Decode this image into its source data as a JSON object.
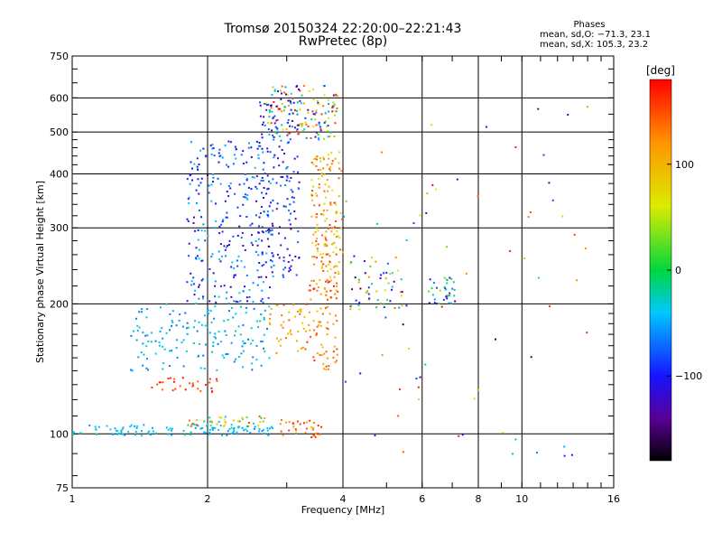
{
  "chart_data": {
    "type": "scatter",
    "title": "Tromsø 20150324 22:20:00–22:21:43",
    "subtitle": "RwPretec (8p)",
    "xlabel": "Frequency [MHz]",
    "ylabel": "Stationary phase Virtual Height [km]",
    "x_scale": "log",
    "y_scale": "log",
    "xlim": [
      1,
      16
    ],
    "ylim": [
      75,
      750
    ],
    "x_ticks": [
      "1",
      "2",
      "4",
      "6",
      "8",
      "10",
      "16"
    ],
    "y_ticks": [
      "75",
      "100",
      "200",
      "300",
      "400",
      "500",
      "600",
      "750"
    ],
    "grid": true,
    "phase_stats": {
      "heading": "Phases",
      "line_o": "mean, sd,O: −71.3, 23.1",
      "line_x": "mean, sd,X: 105.3, 23.2"
    },
    "colorbar": {
      "label": "[deg]",
      "range": [
        -180,
        180
      ],
      "ticks": [
        "100",
        "0",
        "−100"
      ],
      "tick_values": [
        100,
        0,
        -100
      ],
      "colormap": "rainbow (black → purple → blue → cyan → green → yellow → orange → red)"
    },
    "clusters": [
      {
        "f": [
          1.0,
          2.8
        ],
        "h": [
          99,
          105
        ],
        "phase": [
          -60,
          -25
        ],
        "n": 110
      },
      {
        "f": [
          1.8,
          2.7
        ],
        "h": [
          104,
          110
        ],
        "phase": [
          -55,
          160
        ],
        "n": 40
      },
      {
        "f": [
          2.9,
          3.6
        ],
        "h": [
          98,
          108
        ],
        "phase": [
          100,
          180
        ],
        "n": 35
      },
      {
        "f": [
          1.5,
          2.1
        ],
        "h": [
          125,
          135
        ],
        "phase": [
          130,
          175
        ],
        "n": 30
      },
      {
        "f": [
          1.35,
          2.8
        ],
        "h": [
          140,
          200
        ],
        "phase": [
          -70,
          -20
        ],
        "n": 160
      },
      {
        "f": [
          1.8,
          2.8
        ],
        "h": [
          200,
          480
        ],
        "phase": [
          -130,
          -30
        ],
        "n": 280
      },
      {
        "f": [
          2.6,
          3.2
        ],
        "h": [
          230,
          600
        ],
        "phase": [
          -140,
          -60
        ],
        "n": 160
      },
      {
        "f": [
          2.7,
          3.3
        ],
        "h": [
          150,
          200
        ],
        "phase": [
          80,
          150
        ],
        "n": 40
      },
      {
        "f": [
          3.3,
          3.9
        ],
        "h": [
          140,
          230
        ],
        "phase": [
          90,
          170
        ],
        "n": 90
      },
      {
        "f": [
          3.4,
          4.0
        ],
        "h": [
          230,
          450
        ],
        "phase": [
          50,
          160
        ],
        "n": 150
      },
      {
        "f": [
          2.7,
          3.9
        ],
        "h": [
          480,
          640
        ],
        "phase": [
          -150,
          180
        ],
        "n": 140
      },
      {
        "f": [
          4.1,
          5.5
        ],
        "h": [
          190,
          260
        ],
        "phase": [
          -160,
          150
        ],
        "n": 55
      },
      {
        "f": [
          6.2,
          7.1
        ],
        "h": [
          200,
          230
        ],
        "phase": [
          -150,
          40
        ],
        "n": 35
      },
      {
        "f": [
          4.0,
          14.0
        ],
        "h": [
          85,
          650
        ],
        "phase": [
          -160,
          180
        ],
        "n": 70
      }
    ]
  }
}
